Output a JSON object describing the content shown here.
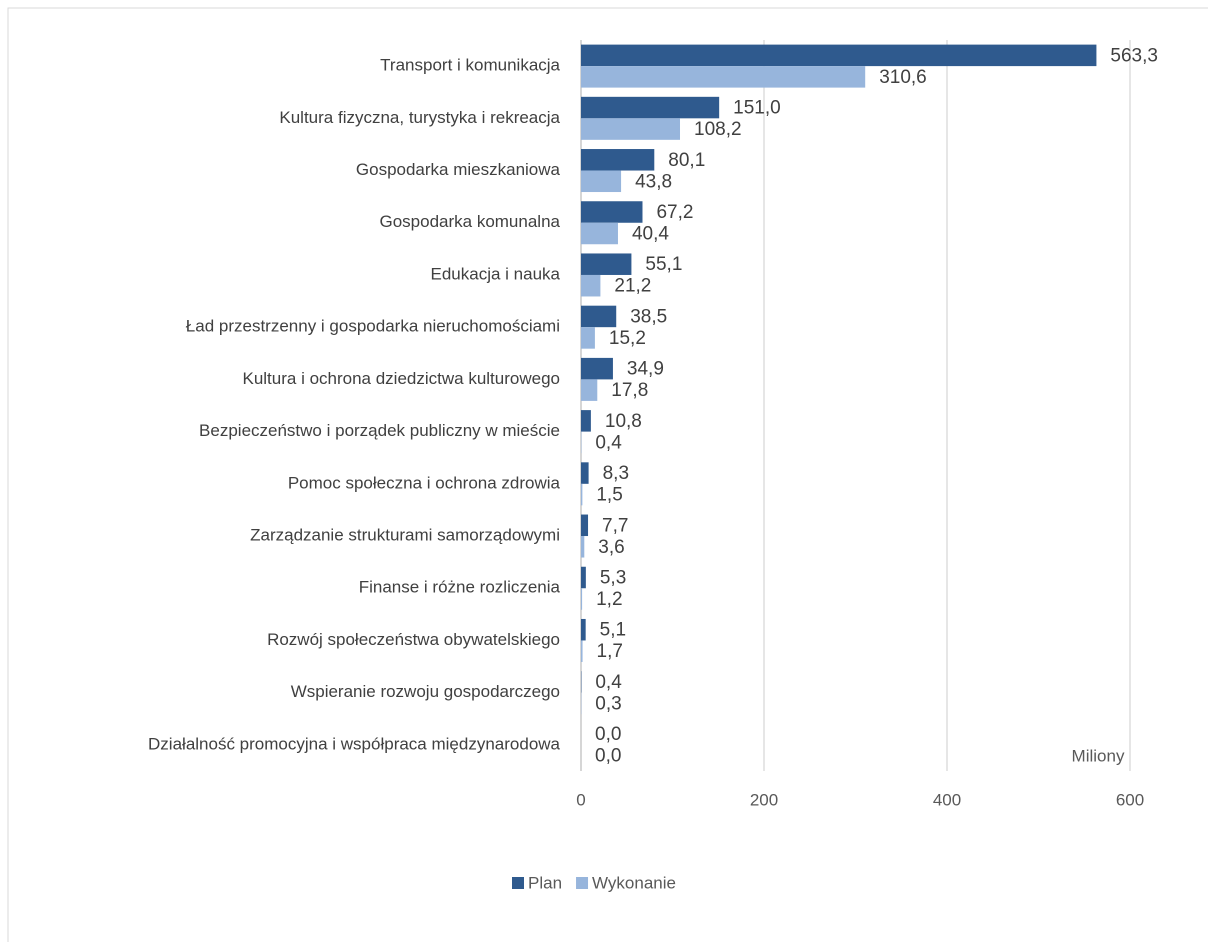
{
  "chart_data": {
    "type": "bar",
    "orientation": "horizontal",
    "categories": [
      "Transport i komunikacja",
      "Kultura fizyczna, turystyka i rekreacja",
      "Gospodarka mieszkaniowa",
      "Gospodarka komunalna",
      "Edukacja i nauka",
      "Ład przestrzenny i gospodarka nieruchomościami",
      "Kultura i ochrona dziedzictwa kulturowego",
      "Bezpieczeństwo i porządek publiczny w mieście",
      "Pomoc społeczna i ochrona zdrowia",
      "Zarządzanie strukturami samorządowymi",
      "Finanse i różne rozliczenia",
      "Rozwój społeczeństwa obywatelskiego",
      "Wspieranie rozwoju gospodarczego",
      "Działalność promocyjna i współpraca międzynarodowa"
    ],
    "series": [
      {
        "name": "Plan",
        "color": "#2f5a8e",
        "values": [
          563.3,
          151.0,
          80.1,
          67.2,
          55.1,
          38.5,
          34.9,
          10.8,
          8.3,
          7.7,
          5.3,
          5.1,
          0.4,
          0.0
        ],
        "value_labels": [
          "563,3",
          "151,0",
          "80,1",
          "67,2",
          "55,1",
          "38,5",
          "34,9",
          "10,8",
          "8,3",
          "7,7",
          "5,3",
          "5,1",
          "0,4",
          "0,0"
        ]
      },
      {
        "name": "Wykonanie",
        "color": "#97b5dc",
        "values": [
          310.6,
          108.2,
          43.8,
          40.4,
          21.2,
          15.2,
          17.8,
          0.4,
          1.5,
          3.6,
          1.2,
          1.7,
          0.3,
          0.0
        ],
        "value_labels": [
          "310,6",
          "108,2",
          "43,8",
          "40,4",
          "21,2",
          "15,2",
          "17,8",
          "0,4",
          "1,5",
          "3,6",
          "1,2",
          "1,7",
          "0,3",
          "0,0"
        ]
      }
    ],
    "xlim": [
      0,
      600
    ],
    "xticks": [
      0,
      200,
      400,
      600
    ],
    "x_label": "Miliony",
    "grid": true,
    "legend": "bottom"
  }
}
